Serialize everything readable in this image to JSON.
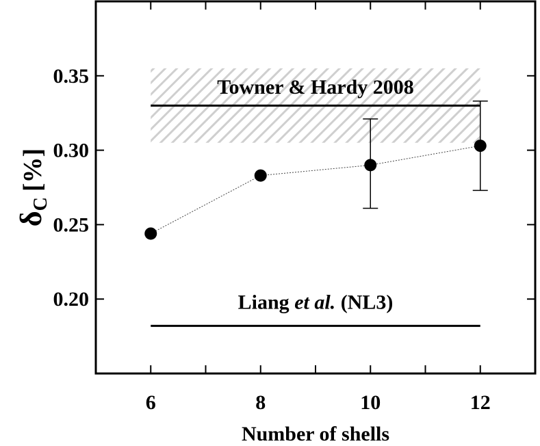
{
  "chart_data": {
    "type": "scatter",
    "xlabel": "Number of shells",
    "ylabel": {
      "symbol": "δ",
      "subscript": "C",
      "unit": "[%]"
    },
    "xlim": [
      5,
      13
    ],
    "ylim": [
      0.15,
      0.4
    ],
    "x_ticks": [
      {
        "value": 6,
        "label": "6"
      },
      {
        "value": 8,
        "label": "8"
      },
      {
        "value": 10,
        "label": "10"
      },
      {
        "value": 12,
        "label": "12"
      }
    ],
    "x_minor_ticks": [
      5,
      7,
      9,
      11,
      13
    ],
    "y_ticks": [
      {
        "value": 0.2,
        "label": "0.20"
      },
      {
        "value": 0.25,
        "label": "0.25"
      },
      {
        "value": 0.3,
        "label": "0.30"
      },
      {
        "value": 0.35,
        "label": "0.35"
      }
    ],
    "grid": false,
    "series": [
      {
        "x": [
          6,
          8,
          10,
          12
        ],
        "y": [
          0.244,
          0.283,
          0.29,
          0.303
        ],
        "yerr_low": [
          null,
          null,
          0.261,
          0.273
        ],
        "yerr_high": [
          null,
          null,
          0.321,
          0.333
        ],
        "color": "#000000",
        "line_style": "dotted"
      }
    ],
    "reference_lines": [
      {
        "label_parts": [
          {
            "text": "Towner & Hardy 2008",
            "italic": false
          }
        ],
        "y": 0.33,
        "x_range": [
          6,
          12
        ],
        "band": [
          0.305,
          0.355
        ],
        "band_color": "#cccccc"
      },
      {
        "label_parts": [
          {
            "text": "Liang ",
            "italic": false
          },
          {
            "text": "et al.",
            "italic": true
          },
          {
            "text": " (NL3)",
            "italic": false
          }
        ],
        "y": 0.182,
        "x_range": [
          6,
          12
        ]
      }
    ]
  }
}
